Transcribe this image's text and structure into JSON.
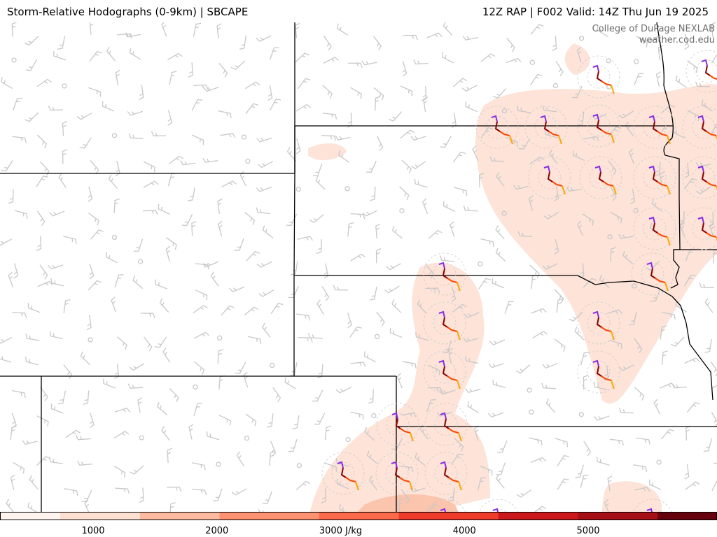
{
  "header": {
    "title": "Storm-Relative Hodographs (0-9km) | SBCAPE",
    "model_info": "12Z RAP | F002 Valid: 14Z Thu Jun 19 2025"
  },
  "credit": {
    "line1": "College of DuPage NEXLAB",
    "line2": "weather.cod.edu"
  },
  "colorbar": {
    "units": "J/kg",
    "colors": [
      "#fff5f0",
      "#fee0d2",
      "#fcbba1",
      "#fc9272",
      "#fb6a4a",
      "#ef3b2c",
      "#cb181d",
      "#a50f15",
      "#67000d"
    ],
    "ticks": [
      {
        "value": 1000,
        "label": "1000"
      },
      {
        "value": 2000,
        "label": "2000"
      },
      {
        "value": 3000,
        "label": "3000 J/kg"
      },
      {
        "value": 4000,
        "label": "4000"
      },
      {
        "value": 5000,
        "label": "5000"
      }
    ],
    "range": [
      0,
      6000
    ]
  },
  "map": {
    "field": "SBCAPE",
    "overlay": "Storm-Relative Hodographs (0-9km)",
    "hodograph_colors": [
      "#8a2be2",
      "#8b0000",
      "#ff4500",
      "#ffa500"
    ],
    "barb_color": "#c8c8c8",
    "border_color": "#000000"
  }
}
